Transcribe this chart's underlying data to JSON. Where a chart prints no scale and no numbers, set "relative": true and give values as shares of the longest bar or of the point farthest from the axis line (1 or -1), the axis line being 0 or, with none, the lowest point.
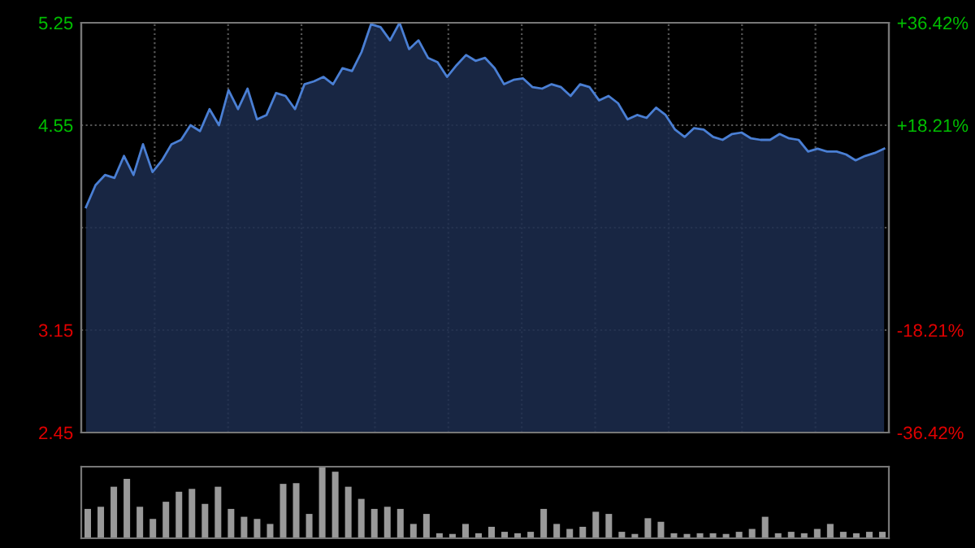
{
  "chart_data": [
    {
      "type": "area",
      "categories": [
        null,
        null,
        null,
        null,
        null,
        null,
        null,
        null,
        null,
        null,
        null,
        null,
        null,
        null,
        null,
        null,
        null,
        null,
        null,
        null,
        null,
        null,
        null,
        null,
        null,
        null,
        null,
        null,
        null,
        null,
        null,
        null,
        null,
        null,
        null,
        null,
        null,
        null,
        null,
        null,
        null,
        null,
        null,
        null,
        null,
        null,
        null,
        null,
        null,
        null,
        null,
        null,
        null,
        null,
        null,
        null,
        null,
        null,
        null,
        null,
        null,
        null,
        null,
        null,
        null,
        null,
        null,
        null,
        null,
        null,
        null,
        null,
        null,
        null,
        null,
        null,
        null,
        null,
        null,
        null,
        null,
        null,
        null,
        null,
        null
      ],
      "series": [
        {
          "color": "#4a7fd4",
          "values": [
            3.99,
            4.14,
            4.21,
            4.19,
            4.34,
            4.21,
            4.42,
            4.23,
            4.31,
            4.42,
            4.45,
            4.55,
            4.51,
            4.66,
            4.55,
            4.79,
            4.66,
            4.8,
            4.59,
            4.62,
            4.77,
            4.75,
            4.66,
            4.83,
            4.85,
            4.88,
            4.83,
            4.94,
            4.92,
            5.05,
            5.24,
            5.22,
            5.13,
            5.25,
            5.07,
            5.13,
            5.01,
            4.98,
            4.88,
            4.96,
            5.03,
            4.99,
            5.01,
            4.94,
            4.83,
            4.86,
            4.87,
            4.81,
            4.8,
            4.83,
            4.81,
            4.75,
            4.83,
            4.81,
            4.72,
            4.75,
            4.7,
            4.59,
            4.62,
            4.6,
            4.67,
            4.62,
            4.52,
            4.47,
            4.53,
            4.52,
            4.47,
            4.45,
            4.49,
            4.5,
            4.46,
            4.45,
            4.45,
            4.49,
            4.46,
            4.45,
            4.37,
            4.39,
            4.37,
            4.37,
            4.35,
            4.31,
            4.34,
            4.36,
            4.39
          ]
        }
      ],
      "ylim": [
        2.45,
        5.25
      ],
      "yticks": [
        2.45,
        3.15,
        {
          "value": 3.85,
          "label": null
        },
        4.55,
        5.25
      ],
      "y2lim": [
        -36.42,
        36.42
      ],
      "y2ticks": [
        {
          "value": -36.42,
          "label": "-36.42%"
        },
        {
          "value": -18.21,
          "label": "-18.21%"
        },
        {
          "value": 0,
          "label": null
        },
        {
          "value": 18.21,
          "label": "+18.21%"
        },
        {
          "value": 36.42,
          "label": "+36.42%"
        }
      ],
      "grid": true,
      "tick_labels": "y"
    },
    {
      "type": "bar",
      "relative": true,
      "color": "#999999",
      "categories": [
        null,
        null,
        null,
        null,
        null,
        null,
        null,
        null,
        null,
        null,
        null,
        null,
        null,
        null,
        null,
        null,
        null,
        null,
        null,
        null,
        null,
        null,
        null,
        null,
        null,
        null,
        null,
        null,
        null,
        null,
        null,
        null,
        null,
        null,
        null,
        null,
        null,
        null,
        null,
        null,
        null,
        null,
        null,
        null,
        null,
        null,
        null,
        null,
        null,
        null,
        null,
        null,
        null,
        null,
        null,
        null,
        null,
        null,
        null,
        null,
        null,
        null
      ],
      "values": [
        0.41,
        0.44,
        0.72,
        0.83,
        0.44,
        0.27,
        0.51,
        0.65,
        0.69,
        0.48,
        0.72,
        0.41,
        0.3,
        0.27,
        0.2,
        0.76,
        0.77,
        0.34,
        1,
        0.93,
        0.72,
        0.55,
        0.41,
        0.44,
        0.41,
        0.2,
        0.34,
        0.07,
        0.06,
        0.2,
        0.07,
        0.16,
        0.09,
        0.07,
        0.09,
        0.41,
        0.2,
        0.13,
        0.16,
        0.37,
        0.34,
        0.09,
        0.06,
        0.28,
        0.23,
        0.07,
        0.06,
        0.07,
        0.07,
        0.06,
        0.09,
        0.13,
        0.3,
        0.07,
        0.09,
        0.07,
        0.13,
        0.2,
        0.09,
        0.07,
        0.09,
        0.09
      ],
      "tick_labels": false
    }
  ]
}
